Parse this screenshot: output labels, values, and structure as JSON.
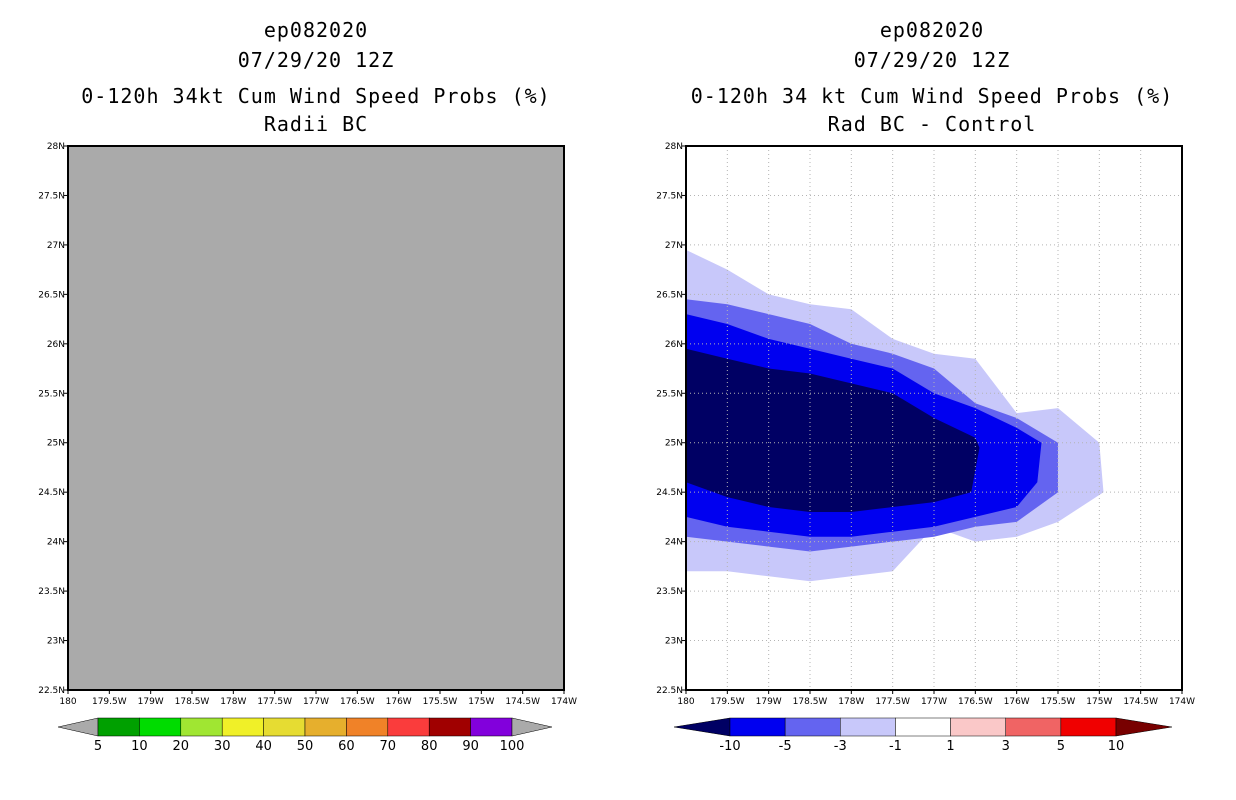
{
  "left_panel": {
    "title_lines": [
      "ep082020",
      "07/29/20 12Z",
      "0-120h 34kt Cum Wind Speed Probs (%)",
      "Radii BC"
    ],
    "background_color": "#aaaaaa"
  },
  "right_panel": {
    "title_lines": [
      "ep082020",
      "07/29/20 12Z",
      "0-120h 34 kt Cum Wind Speed Probs (%)",
      "Rad BC - Control"
    ]
  },
  "chart_data": [
    {
      "type": "heatmap",
      "title": "0-120h 34kt Cum Wind Speed Probs (%)",
      "subtitle": "Radii BC",
      "storm": "ep082020",
      "datetime": "07/29/20 12Z",
      "xlim": [
        -180,
        -174
      ],
      "ylim": [
        22.5,
        28
      ],
      "x_ticks": [
        -180,
        -179.5,
        -179,
        -178.5,
        -178,
        -177.5,
        -177,
        -176.5,
        -176,
        -175.5,
        -175,
        -174.5,
        -174
      ],
      "x_tick_labels": [
        "180",
        "179.5W",
        "179W",
        "178.5W",
        "178W",
        "177.5W",
        "177W",
        "176.5W",
        "176W",
        "175.5W",
        "175W",
        "174.5W",
        "174W"
      ],
      "y_ticks": [
        22.5,
        23,
        23.5,
        24,
        24.5,
        25,
        25.5,
        26,
        26.5,
        27,
        27.5,
        28
      ],
      "y_tick_labels": [
        "22.5N",
        "23N",
        "23.5N",
        "24N",
        "24.5N",
        "25N",
        "25.5N",
        "26N",
        "26.5N",
        "27N",
        "27.5N",
        "28N"
      ],
      "grid": false,
      "field": "undefined",
      "colorbar": {
        "levels": [
          "5",
          "10",
          "20",
          "30",
          "40",
          "50",
          "60",
          "70",
          "80",
          "90",
          "100"
        ],
        "colors": [
          "#aaaaaa",
          "#00a000",
          "#00dc00",
          "#a0e632",
          "#f0f028",
          "#e6dc32",
          "#e6af2d",
          "#f08228",
          "#fa3c3c",
          "#a00000",
          "#8200dc",
          "#aaaaaa"
        ]
      }
    },
    {
      "type": "heatmap",
      "title": "0-120h 34 kt Cum Wind Speed Probs (%)",
      "subtitle": "Rad BC - Control",
      "storm": "ep082020",
      "datetime": "07/29/20 12Z",
      "xlim": [
        -180,
        -174
      ],
      "ylim": [
        22.5,
        28
      ],
      "x_ticks": [
        -180,
        -179.5,
        -179,
        -178.5,
        -178,
        -177.5,
        -177,
        -176.5,
        -176,
        -175.5,
        -175,
        -174.5,
        -174
      ],
      "x_tick_labels": [
        "180",
        "179.5W",
        "179W",
        "178.5W",
        "178W",
        "177.5W",
        "177W",
        "176.5W",
        "176W",
        "175.5W",
        "175W",
        "174.5W",
        "174W"
      ],
      "y_ticks": [
        22.5,
        23,
        23.5,
        24,
        24.5,
        25,
        25.5,
        26,
        26.5,
        27,
        27.5,
        28
      ],
      "y_tick_labels": [
        "22.5N",
        "23N",
        "23.5N",
        "24N",
        "24.5N",
        "25N",
        "25.5N",
        "26N",
        "26.5N",
        "27N",
        "27.5N",
        "28N"
      ],
      "grid": true,
      "colorbar": {
        "levels": [
          "-10",
          "-5",
          "-3",
          "-1",
          "1",
          "3",
          "5",
          "10"
        ],
        "colors": [
          "#000064",
          "#0000f0",
          "#6464f0",
          "#c8c8fa",
          "#ffffff",
          "#fac8c8",
          "#f06464",
          "#f00000",
          "#780000"
        ]
      },
      "contours": [
        {
          "level": "-1",
          "color": "#c8c8fa",
          "points": [
            [
              -180,
              26.95
            ],
            [
              -179.5,
              26.75
            ],
            [
              -179,
              26.5
            ],
            [
              -178.5,
              26.4
            ],
            [
              -178,
              26.35
            ],
            [
              -177.5,
              26.05
            ],
            [
              -177,
              25.9
            ],
            [
              -176.5,
              25.85
            ],
            [
              -176,
              25.3
            ],
            [
              -175.5,
              25.35
            ],
            [
              -175,
              25.0
            ],
            [
              -174.95,
              24.5
            ],
            [
              -175.5,
              24.2
            ],
            [
              -176,
              24.05
            ],
            [
              -176.5,
              24.0
            ],
            [
              -177,
              24.15
            ],
            [
              -177.5,
              23.7
            ],
            [
              -178,
              23.65
            ],
            [
              -178.5,
              23.6
            ],
            [
              -179,
              23.65
            ],
            [
              -179.5,
              23.7
            ],
            [
              -180,
              23.7
            ]
          ]
        },
        {
          "level": "-3",
          "color": "#6464f0",
          "points": [
            [
              -180,
              26.45
            ],
            [
              -179.5,
              26.4
            ],
            [
              -179,
              26.3
            ],
            [
              -178.5,
              26.2
            ],
            [
              -178,
              26.0
            ],
            [
              -177.5,
              25.9
            ],
            [
              -177,
              25.75
            ],
            [
              -176.5,
              25.4
            ],
            [
              -176,
              25.25
            ],
            [
              -175.5,
              25.0
            ],
            [
              -175.5,
              24.5
            ],
            [
              -176,
              24.2
            ],
            [
              -176.5,
              24.15
            ],
            [
              -177,
              24.05
            ],
            [
              -177.5,
              24.0
            ],
            [
              -178,
              23.95
            ],
            [
              -178.5,
              23.9
            ],
            [
              -179,
              23.95
            ],
            [
              -179.5,
              24.0
            ],
            [
              -180,
              24.05
            ]
          ]
        },
        {
          "level": "-5",
          "color": "#0000f0",
          "points": [
            [
              -180,
              26.3
            ],
            [
              -179.5,
              26.2
            ],
            [
              -179,
              26.05
            ],
            [
              -178.5,
              25.95
            ],
            [
              -178,
              25.85
            ],
            [
              -177.5,
              25.75
            ],
            [
              -177,
              25.5
            ],
            [
              -176.5,
              25.35
            ],
            [
              -176,
              25.15
            ],
            [
              -175.7,
              25.0
            ],
            [
              -175.75,
              24.6
            ],
            [
              -176,
              24.35
            ],
            [
              -176.5,
              24.25
            ],
            [
              -177,
              24.15
            ],
            [
              -177.5,
              24.1
            ],
            [
              -178,
              24.05
            ],
            [
              -178.5,
              24.05
            ],
            [
              -179,
              24.1
            ],
            [
              -179.5,
              24.15
            ],
            [
              -180,
              24.25
            ]
          ]
        },
        {
          "level": "-10",
          "color": "#000064",
          "points": [
            [
              -180,
              25.95
            ],
            [
              -179.5,
              25.85
            ],
            [
              -179,
              25.75
            ],
            [
              -178.5,
              25.7
            ],
            [
              -178,
              25.6
            ],
            [
              -177.5,
              25.5
            ],
            [
              -177,
              25.25
            ],
            [
              -176.5,
              25.05
            ],
            [
              -176.45,
              24.95
            ],
            [
              -176.55,
              24.5
            ],
            [
              -177,
              24.4
            ],
            [
              -177.5,
              24.35
            ],
            [
              -178,
              24.3
            ],
            [
              -178.5,
              24.3
            ],
            [
              -179,
              24.35
            ],
            [
              -179.5,
              24.45
            ],
            [
              -180,
              24.6
            ]
          ]
        }
      ]
    }
  ]
}
